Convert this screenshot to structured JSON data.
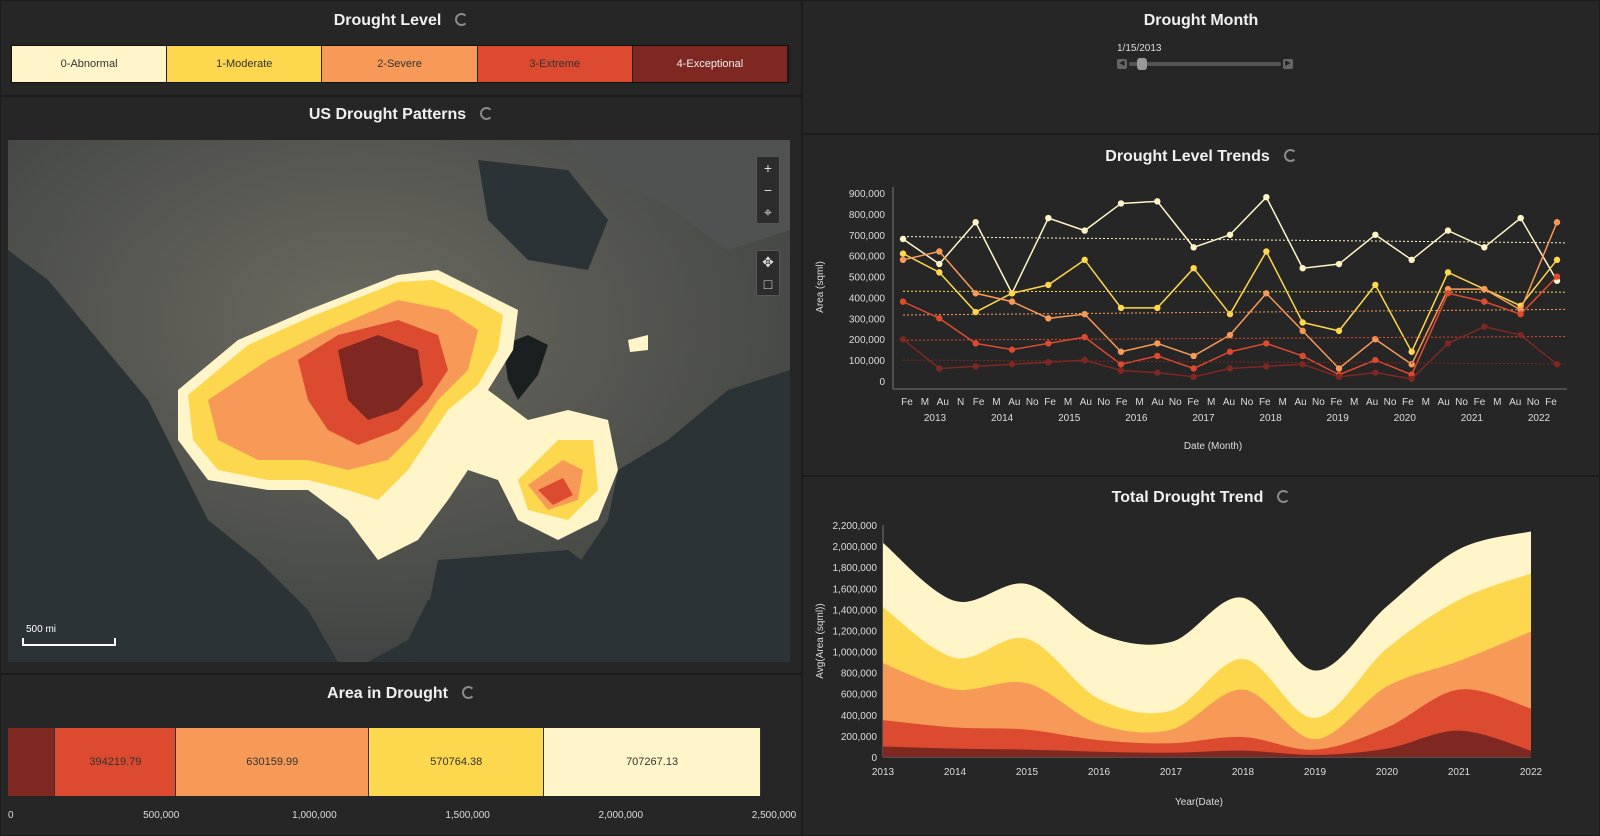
{
  "drought_level": {
    "title": "Drought Level",
    "levels": [
      {
        "label": "0-Abnormal",
        "color": "#fff5c8",
        "text": "#333333"
      },
      {
        "label": "1-Moderate",
        "color": "#fdd84e",
        "text": "#333333"
      },
      {
        "label": "2-Severe",
        "color": "#f79a58",
        "text": "#333333"
      },
      {
        "label": "3-Extreme",
        "color": "#dc4a30",
        "text": "#333333"
      },
      {
        "label": "4-Exceptional",
        "color": "#7e2821",
        "text": "#f0f0f0"
      }
    ]
  },
  "map_panel": {
    "title": "US Drought Patterns",
    "scale_label": "500 mi"
  },
  "area_panel": {
    "title": "Area in Drought",
    "segments": [
      {
        "value": 155000,
        "label": "",
        "color": "#7e2821"
      },
      {
        "value": 394219.79,
        "label": "394219.79",
        "color": "#dc4a30"
      },
      {
        "value": 630159.99,
        "label": "630159.99",
        "color": "#f79a58"
      },
      {
        "value": 570764.38,
        "label": "570764.38",
        "color": "#fdd84e"
      },
      {
        "value": 707267.13,
        "label": "707267.13",
        "color": "#fff5c8"
      }
    ],
    "max": 2500000,
    "ticks": [
      "0",
      "500,000",
      "1,000,000",
      "1,500,000",
      "2,000,000",
      "2,500,000"
    ]
  },
  "month_panel": {
    "title": "Drought Month",
    "selected_date": "1/15/2013",
    "slider_position": 0.05
  },
  "trends_panel": {
    "title": "Drought Level Trends",
    "ylabel": "Area (sqml)",
    "xlabel": "Date (Month)",
    "y_ticks": [
      "900,000",
      "800,000",
      "700,000",
      "600,000",
      "500,000",
      "400,000",
      "300,000",
      "200,000",
      "100,000",
      "0"
    ],
    "month_ticks": [
      "Fe",
      "M",
      "Au",
      "N",
      "Fe",
      "M",
      "Au",
      "No",
      "Fe",
      "M",
      "Au",
      "No",
      "Fe",
      "M",
      "Au",
      "No",
      "Fe",
      "M",
      "Au",
      "No",
      "Fe",
      "M",
      "Au",
      "No",
      "Fe",
      "M",
      "Au",
      "No",
      "Fe",
      "M",
      "Au",
      "No",
      "Fe",
      "M",
      "Au",
      "No",
      "Fe"
    ],
    "years": [
      "2013",
      "2014",
      "2015",
      "2016",
      "2017",
      "2018",
      "2019",
      "2020",
      "2021",
      "2022"
    ]
  },
  "total_panel": {
    "title": "Total Drought Trend",
    "ylabel": "Avg(Area (sqml))",
    "xlabel": "Year(Date)",
    "y_ticks": [
      "2,200,000",
      "2,000,000",
      "1,800,000",
      "1,600,000",
      "1,400,000",
      "1,200,000",
      "1,000,000",
      "800,000",
      "600,000",
      "400,000",
      "200,000",
      "0"
    ],
    "x_ticks": [
      "2013",
      "2014",
      "2015",
      "2016",
      "2017",
      "2018",
      "2019",
      "2020",
      "2021",
      "2022"
    ]
  },
  "chart_data": [
    {
      "type": "line",
      "title": "Drought Level Trends",
      "ylabel": "Area (sqml)",
      "xlabel": "Date (Month)",
      "ylim": [
        0,
        950000
      ],
      "x": [
        "2013",
        "2013.5",
        "2014",
        "2014.5",
        "2015",
        "2015.5",
        "2016",
        "2016.5",
        "2017",
        "2017.5",
        "2018",
        "2018.5",
        "2019",
        "2019.5",
        "2020",
        "2020.5",
        "2021",
        "2021.5",
        "2022"
      ],
      "series": [
        {
          "name": "0-Abnormal",
          "color": "#fff5c8",
          "values": [
            680000,
            560000,
            760000,
            420000,
            780000,
            720000,
            850000,
            860000,
            640000,
            700000,
            880000,
            540000,
            560000,
            700000,
            580000,
            720000,
            640000,
            780000,
            480000
          ]
        },
        {
          "name": "1-Moderate",
          "color": "#fdd84e",
          "values": [
            610000,
            520000,
            330000,
            420000,
            460000,
            580000,
            350000,
            350000,
            540000,
            320000,
            620000,
            280000,
            240000,
            460000,
            140000,
            520000,
            440000,
            360000,
            580000
          ]
        },
        {
          "name": "2-Severe",
          "color": "#f79a58",
          "values": [
            580000,
            620000,
            420000,
            380000,
            300000,
            320000,
            140000,
            180000,
            120000,
            220000,
            420000,
            240000,
            60000,
            200000,
            80000,
            440000,
            440000,
            340000,
            760000
          ]
        },
        {
          "name": "3-Extreme",
          "color": "#dc4a30",
          "values": [
            380000,
            300000,
            180000,
            150000,
            180000,
            210000,
            80000,
            120000,
            60000,
            140000,
            180000,
            120000,
            30000,
            100000,
            30000,
            420000,
            380000,
            320000,
            500000
          ]
        },
        {
          "name": "4-Exceptional",
          "color": "#7e2821",
          "values": [
            200000,
            60000,
            70000,
            80000,
            90000,
            100000,
            50000,
            40000,
            20000,
            60000,
            70000,
            80000,
            20000,
            40000,
            10000,
            180000,
            260000,
            220000,
            80000
          ]
        }
      ]
    },
    {
      "type": "area",
      "title": "Total Drought Trend",
      "ylabel": "Avg(Area (sqml))",
      "xlabel": "Year(Date)",
      "ylim": [
        0,
        2200000
      ],
      "categories": [
        "2013",
        "2014",
        "2015",
        "2016",
        "2017",
        "2018",
        "2019",
        "2020",
        "2021",
        "2022"
      ],
      "series": [
        {
          "name": "4-Exceptional",
          "color": "#7e2821",
          "values": [
            100000,
            80000,
            70000,
            50000,
            40000,
            60000,
            20000,
            80000,
            250000,
            60000
          ]
        },
        {
          "name": "3-Extreme",
          "color": "#dc4a30",
          "values": [
            250000,
            200000,
            190000,
            110000,
            90000,
            130000,
            50000,
            200000,
            390000,
            400000
          ]
        },
        {
          "name": "2-Severe",
          "color": "#f79a58",
          "values": [
            540000,
            360000,
            440000,
            150000,
            130000,
            450000,
            100000,
            390000,
            270000,
            730000
          ]
        },
        {
          "name": "1-Moderate",
          "color": "#fdd84e",
          "values": [
            530000,
            300000,
            420000,
            240000,
            180000,
            290000,
            200000,
            360000,
            580000,
            550000
          ]
        },
        {
          "name": "0-Abnormal",
          "color": "#fff5c8",
          "values": [
            610000,
            540000,
            520000,
            620000,
            650000,
            580000,
            450000,
            400000,
            480000,
            400000
          ]
        }
      ]
    }
  ]
}
